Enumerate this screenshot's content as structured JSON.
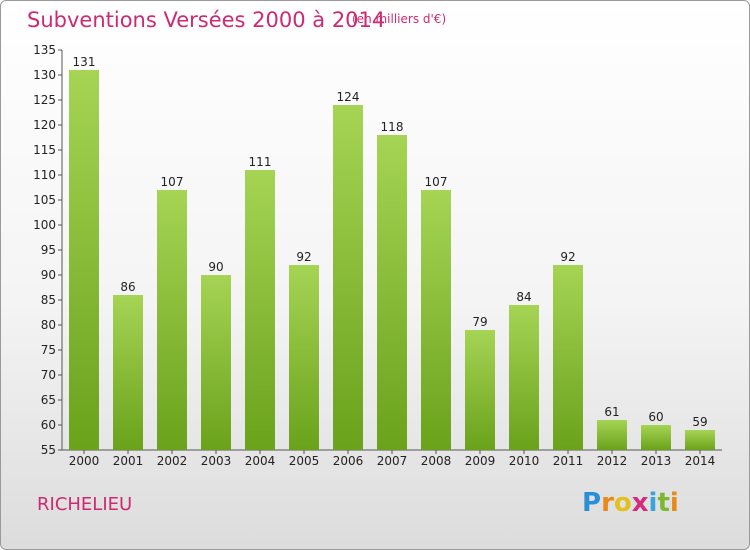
{
  "title": "Subventions Versées 2000 à 2014",
  "subtitle": "(en milliers d'€)",
  "city": "RICHELIEU",
  "logo": {
    "text": "Proxiti",
    "letters": [
      "P",
      "r",
      "o",
      "x",
      "i",
      "t",
      "i"
    ],
    "colors": [
      "#2a8fd6",
      "#e88a1a",
      "#e2c11c",
      "#d42c7c",
      "#39a5dc",
      "#7cb82f",
      "#e88a1a"
    ]
  },
  "colors": {
    "accent": "#cc2a72",
    "bar_top": "#a6d455",
    "bar_bottom": "#6aa21b"
  },
  "chart_data": {
    "type": "bar",
    "title": "Subventions Versées 2000 à 2014",
    "subtitle": "(en milliers d'€)",
    "categories": [
      "2000",
      "2001",
      "2002",
      "2003",
      "2004",
      "2005",
      "2006",
      "2007",
      "2008",
      "2009",
      "2010",
      "2011",
      "2012",
      "2013",
      "2014"
    ],
    "values": [
      131,
      86,
      107,
      90,
      111,
      92,
      124,
      118,
      107,
      79,
      84,
      92,
      61,
      60,
      59
    ],
    "ylim": [
      55,
      135
    ],
    "yticks": [
      55,
      60,
      65,
      70,
      75,
      80,
      85,
      90,
      95,
      100,
      105,
      110,
      115,
      120,
      125,
      130,
      135
    ],
    "grid": false,
    "legend": "none"
  }
}
